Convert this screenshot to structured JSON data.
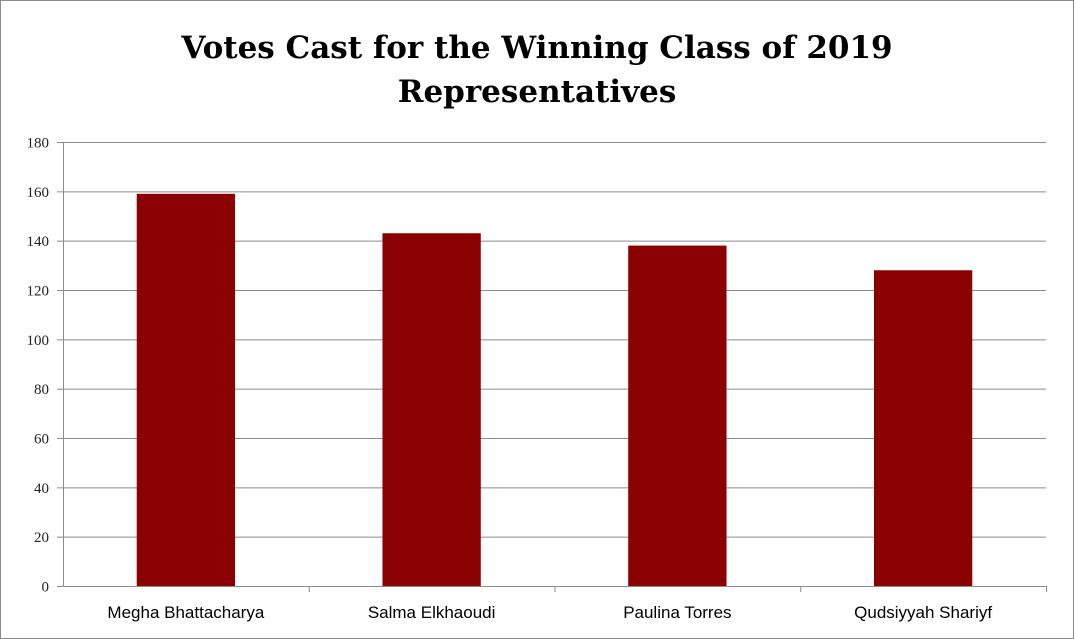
{
  "chart_data": {
    "type": "bar",
    "title": [
      "Votes Cast for the Winning Class of 2019",
      "Representatives"
    ],
    "xlabel": "",
    "ylabel": "",
    "categories": [
      "Megha Bhattacharya",
      "Salma Elkhaoudi",
      "Paulina Torres",
      "Qudsiyyah Shariyf"
    ],
    "values": [
      159,
      143,
      138,
      128
    ],
    "ylim": [
      0,
      180
    ],
    "yticks": [
      "0",
      "20",
      "40",
      "60",
      "80",
      "100",
      "120",
      "140",
      "160",
      "180"
    ],
    "grid": true,
    "legend": "none",
    "colors": {
      "bar": "#8b0000",
      "grid": "#8c8c8c",
      "axis": "#8c8c8c"
    }
  }
}
